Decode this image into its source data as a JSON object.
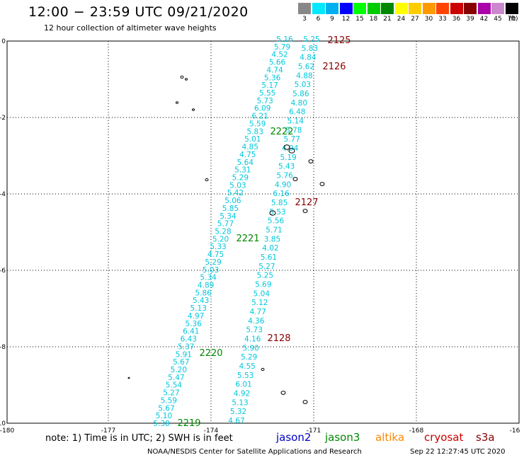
{
  "title": "12:00 − 23:59 UTC 09/21/2020",
  "subtitle": "12 hour collection of altimeter wave heights",
  "scale": {
    "labels": [
      "3",
      "6",
      "9",
      "12",
      "15",
      "18",
      "21",
      "24",
      "27",
      "30",
      "33",
      "36",
      "39",
      "42",
      "45",
      "70"
    ],
    "colors": [
      "#888888",
      "#00e8ff",
      "#00b0f0",
      "#0000ff",
      "#00ff00",
      "#00cc00",
      "#008800",
      "#ffff00",
      "#ffcc00",
      "#ff9900",
      "#ff4400",
      "#cc0000",
      "#880000",
      "#aa00aa",
      "#cc88cc",
      "#000000"
    ],
    "unit": "(ft)"
  },
  "axes": {
    "x_ticks": [
      "-180",
      "-177",
      "-174",
      "-171",
      "-168",
      "-16"
    ],
    "y_ticks": [
      "0",
      "-2",
      "-4",
      "-6",
      "-8",
      "-10"
    ]
  },
  "tracks": [
    {
      "id": "2219",
      "color": "#008800"
    },
    {
      "id": "2220",
      "color": "#008800"
    },
    {
      "id": "2221",
      "color": "#008800"
    },
    {
      "id": "2222",
      "color": "#008800"
    },
    {
      "id": "2125",
      "color": "#880000"
    },
    {
      "id": "2126",
      "color": "#880000"
    },
    {
      "id": "2127",
      "color": "#880000"
    },
    {
      "id": "2128",
      "color": "#880000"
    }
  ],
  "swh_values": {
    "colA": [
      "5.38",
      "5.10",
      "5.67",
      "5.59",
      "5.27",
      "5.54",
      "5.47",
      "5.20",
      "5.67",
      "5.91",
      "5.37",
      "6.43",
      "6.41",
      "5.36",
      "4.97",
      "5.13",
      "5.43",
      "5.86",
      "4.89",
      "5.34",
      "5.03",
      "5.29",
      "4.75",
      "5.33",
      "5.20",
      "5.28",
      "5.77",
      "5.34",
      "5.85",
      "5.06",
      "5.42",
      "5.03",
      "5.29",
      "5.31",
      "5.64",
      "4.75",
      "4.85",
      "5.01",
      "5.83",
      "5.59",
      "6.21",
      "6.09",
      "5.73",
      "5.55",
      "5.17",
      "5.36",
      "4.74",
      "5.66",
      "4.52",
      "5.79",
      "5.16"
    ],
    "colB": [
      "4.67",
      "5.32",
      "5.13",
      "4.92",
      "6.01",
      "5.53",
      "4.55",
      "5.29",
      "5.90",
      "4.16",
      "5.73",
      "4.36",
      "4.77",
      "5.12",
      "5.04",
      "5.69",
      "5.25",
      "5.27",
      "5.61",
      "4.02",
      "3.85",
      "5.71",
      "5.56",
      "5.53",
      "5.85",
      "6.16",
      "4.90",
      "5.76",
      "5.43",
      "5.19",
      "4.94",
      "5.77",
      "5.78",
      "5.14",
      "6.48",
      "4.80",
      "5.86",
      "5.03",
      "4.88",
      "5.62",
      "4.84",
      "5.83",
      "5.25"
    ]
  },
  "note": "note: 1) Time is in UTC; 2) SWH is in feet",
  "satellites": [
    {
      "name": "jason2",
      "color": "#0000cc"
    },
    {
      "name": "jason3",
      "color": "#008800"
    },
    {
      "name": "altika",
      "color": "#ff8800"
    },
    {
      "name": "cryosat",
      "color": "#cc0000"
    },
    {
      "name": "s3a",
      "color": "#880000"
    }
  ],
  "footer": "NOAA/NESDIS Center for Satellite Applications and Research",
  "timestamp": "Sep 22 12:27:45 UTC 2020"
}
